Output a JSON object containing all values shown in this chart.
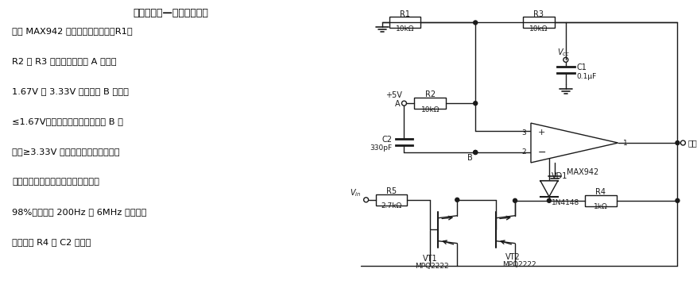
{
  "title": "宽频带电压—频率转换电路",
  "desc_lines": [
    "图中 MAX942 为高速电压比较器。R1、",
    "R2 和 R3 使输出点维持在 A 点电位",
    "1.67V 至 3.33V 之间，当 B 点电位",
    "≤1.67V时，电压比较器开通。当 B 点",
    "电位≥3.33V 时复位。此电路可作为简",
    "易逻辑脉冲信号发生器，线性度可达",
    "98%，频率压 200Hz 到 6MHz 之间，可",
    "通过调节 R4 和 C2 确定。"
  ],
  "bg_color": "#ffffff",
  "line_color": "#1a1a1a"
}
